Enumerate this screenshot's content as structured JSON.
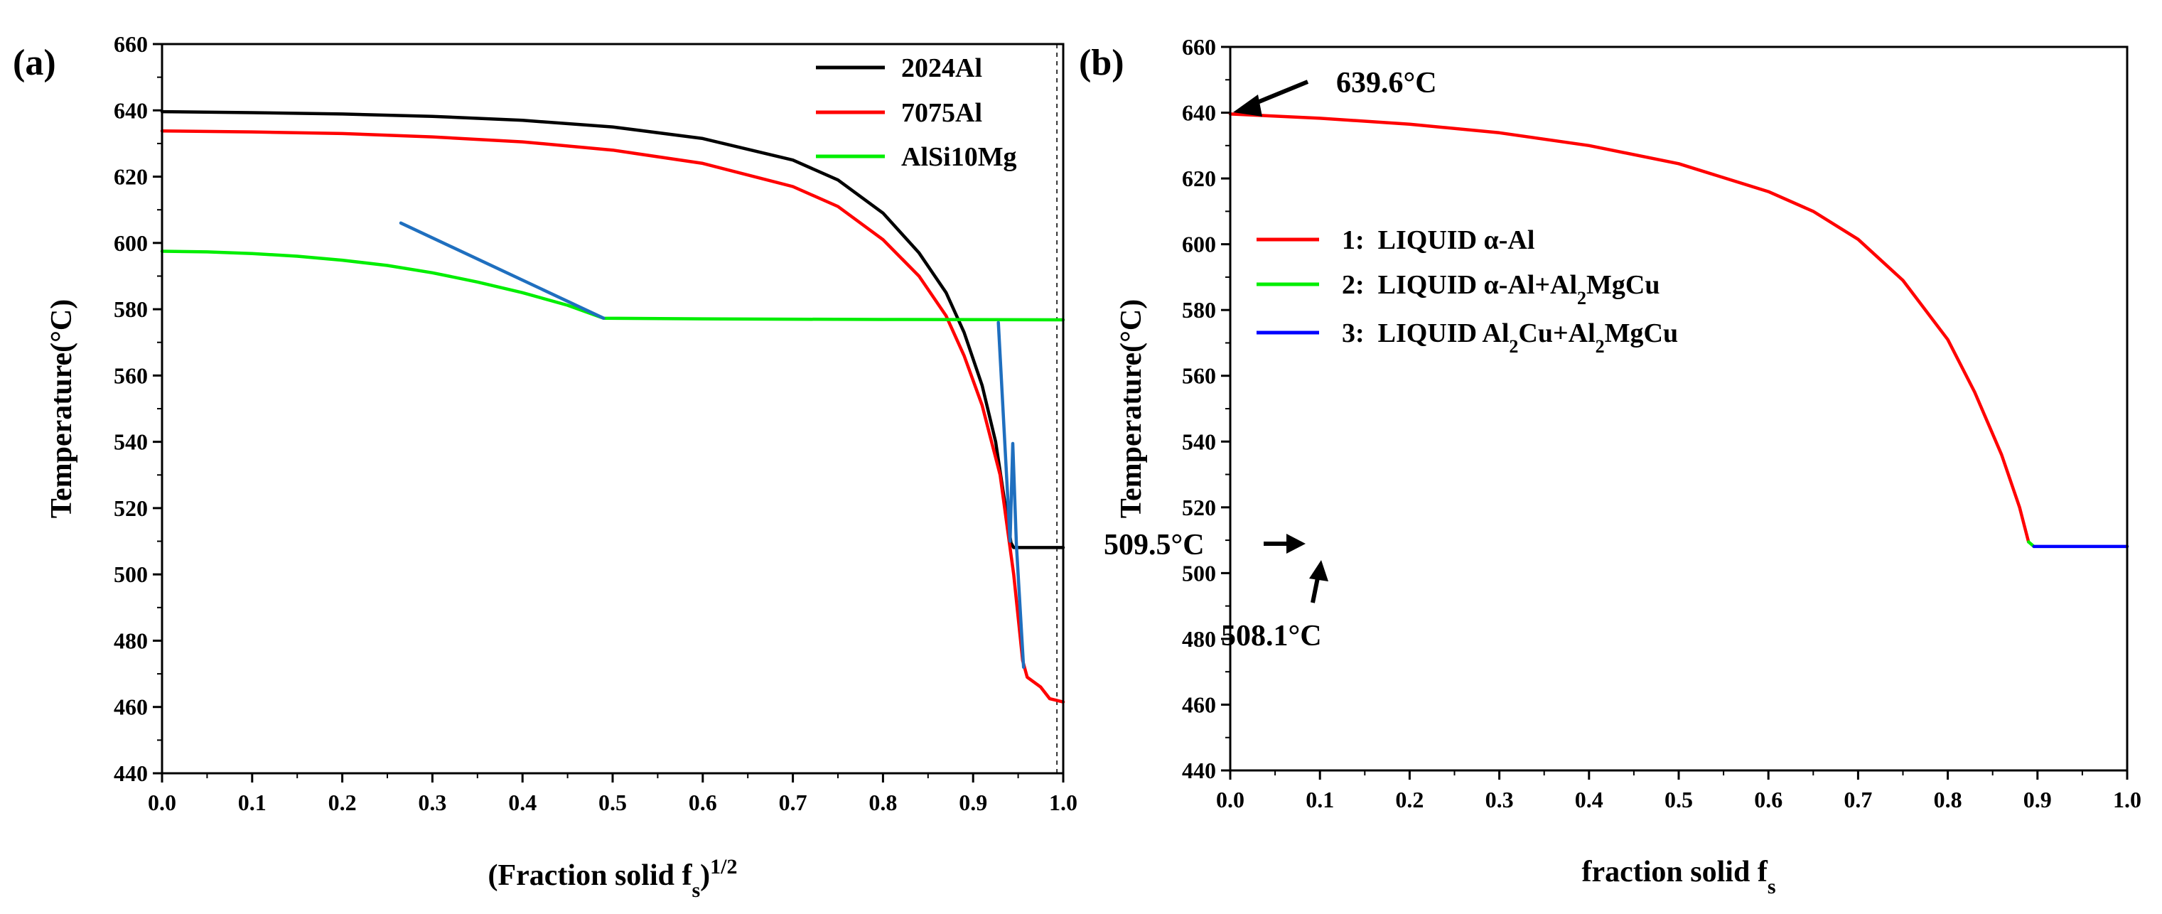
{
  "chart_data": [
    {
      "type": "line",
      "panel_label": "(a)",
      "title": "",
      "xlabel_main": "(Fraction solid f",
      "xlabel_sub": "s",
      "xlabel_close": ")",
      "xlabel_sup": "1/2",
      "ylabel": "Temperature(°C)",
      "xlim": [
        0.0,
        1.0
      ],
      "ylim": [
        440,
        660
      ],
      "xticks": [
        "0.0",
        "0.1",
        "0.2",
        "0.3",
        "0.4",
        "0.5",
        "0.6",
        "0.7",
        "0.8",
        "0.9",
        "1.0"
      ],
      "yticks": [
        "440",
        "460",
        "480",
        "500",
        "520",
        "540",
        "560",
        "580",
        "600",
        "620",
        "640",
        "660"
      ],
      "legend_position": "top-right",
      "series": [
        {
          "name": "2024Al",
          "color": "#000000",
          "in_legend": true,
          "points": [
            [
              0.0,
              639.6
            ],
            [
              0.1,
              639.3
            ],
            [
              0.2,
              638.9
            ],
            [
              0.3,
              638.2
            ],
            [
              0.4,
              637.0
            ],
            [
              0.5,
              635.0
            ],
            [
              0.6,
              631.5
            ],
            [
              0.7,
              625.0
            ],
            [
              0.75,
              619.0
            ],
            [
              0.8,
              609.0
            ],
            [
              0.84,
              597.0
            ],
            [
              0.87,
              585.0
            ],
            [
              0.89,
              573.0
            ],
            [
              0.91,
              557.0
            ],
            [
              0.925,
              540.0
            ],
            [
              0.935,
              522.0
            ],
            [
              0.942,
              509.5
            ],
            [
              0.945,
              508.1
            ],
            [
              1.0,
              508.1
            ]
          ]
        },
        {
          "name": "7075Al",
          "color": "#ff0000",
          "in_legend": true,
          "points": [
            [
              0.0,
              633.8
            ],
            [
              0.1,
              633.5
            ],
            [
              0.2,
              633.0
            ],
            [
              0.3,
              632.0
            ],
            [
              0.4,
              630.5
            ],
            [
              0.5,
              628.0
            ],
            [
              0.6,
              624.0
            ],
            [
              0.7,
              617.0
            ],
            [
              0.75,
              611.0
            ],
            [
              0.8,
              601.0
            ],
            [
              0.84,
              590.0
            ],
            [
              0.87,
              578.0
            ],
            [
              0.89,
              566.0
            ],
            [
              0.91,
              551.0
            ],
            [
              0.93,
              530.0
            ],
            [
              0.945,
              500.0
            ],
            [
              0.955,
              474.0
            ],
            [
              0.96,
              469.0
            ],
            [
              0.975,
              466.0
            ],
            [
              0.985,
              462.5
            ],
            [
              1.0,
              461.5
            ]
          ]
        },
        {
          "name": "AlSi10Mg",
          "color": "#00ee00",
          "in_legend": true,
          "points": [
            [
              0.0,
              597.5
            ],
            [
              0.05,
              597.3
            ],
            [
              0.1,
              596.8
            ],
            [
              0.15,
              596.0
            ],
            [
              0.2,
              594.8
            ],
            [
              0.25,
              593.2
            ],
            [
              0.3,
              591.0
            ],
            [
              0.35,
              588.2
            ],
            [
              0.4,
              585.0
            ],
            [
              0.45,
              581.2
            ],
            [
              0.49,
              577.3
            ],
            [
              0.6,
              577.1
            ],
            [
              0.7,
              577.0
            ],
            [
              0.8,
              576.9
            ],
            [
              1.0,
              576.8
            ]
          ]
        },
        {
          "name": "",
          "color": "#1f6fbf",
          "in_legend": false,
          "points": [
            [
              0.265,
              606.0
            ],
            [
              0.49,
              577.3
            ]
          ]
        },
        {
          "name": "",
          "color": "#1f6fbf",
          "in_legend": false,
          "points": [
            [
              0.928,
              576.0
            ],
            [
              0.941,
              510.0
            ],
            [
              0.944,
              539.5
            ],
            [
              0.948,
              509.0
            ],
            [
              0.956,
              472.0
            ]
          ]
        }
      ],
      "dashed_reference_x": 0.993
    },
    {
      "type": "line",
      "panel_label": "(b)",
      "title": "",
      "xlabel_main": "fraction solid f",
      "xlabel_sub": "s",
      "ylabel": "Temperature(°C)",
      "xlim": [
        0.0,
        1.0
      ],
      "ylim": [
        440,
        660
      ],
      "xticks": [
        "0.0",
        "0.1",
        "0.2",
        "0.3",
        "0.4",
        "0.5",
        "0.6",
        "0.7",
        "0.8",
        "0.9",
        "1.0"
      ],
      "yticks": [
        "440",
        "460",
        "480",
        "500",
        "520",
        "540",
        "560",
        "580",
        "600",
        "620",
        "640",
        "660"
      ],
      "legend_position": "middle-left",
      "series": [
        {
          "name": "1:  LIQUID α-Al",
          "color": "#ff0000",
          "points": [
            [
              0.0,
              639.6
            ],
            [
              0.1,
              638.3
            ],
            [
              0.2,
              636.5
            ],
            [
              0.3,
              633.9
            ],
            [
              0.4,
              630.0
            ],
            [
              0.5,
              624.5
            ],
            [
              0.6,
              616.0
            ],
            [
              0.65,
              610.0
            ],
            [
              0.7,
              601.5
            ],
            [
              0.75,
              589.0
            ],
            [
              0.8,
              571.0
            ],
            [
              0.83,
              555.0
            ],
            [
              0.86,
              536.0
            ],
            [
              0.88,
              520.0
            ],
            [
              0.89,
              509.5
            ]
          ]
        },
        {
          "name": "2:  LIQUID α-Al+Al2MgCu",
          "color": "#00ee00",
          "points": [
            [
              0.89,
              509.5
            ],
            [
              0.896,
              508.1
            ]
          ]
        },
        {
          "name": "3:  LIQUID Al2Cu+Al2MgCu",
          "color": "#0000ff",
          "points": [
            [
              0.896,
              508.1
            ],
            [
              1.0,
              508.1
            ]
          ]
        }
      ],
      "annotations": [
        {
          "text": "639.6°C",
          "x": 0.0,
          "y": 639.6
        },
        {
          "text": "509.5°C",
          "x": 0.89,
          "y": 509.5
        },
        {
          "text": "508.1°C",
          "x": 0.896,
          "y": 508.1
        }
      ]
    }
  ]
}
